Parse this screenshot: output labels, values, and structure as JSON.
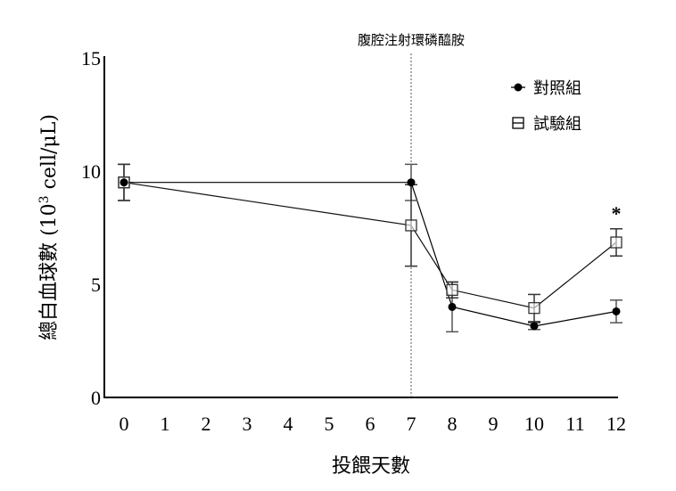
{
  "chart_data": {
    "type": "line",
    "title": "",
    "annotation": "腹腔注射環磷醯胺",
    "annotation_x": 7,
    "xlabel": "投餵天數",
    "ylabel": "總白血球數 (10³ cell/μL)",
    "ylabel_main": "總白血球數 (10",
    "ylabel_sup": "3",
    "ylabel_tail": " cell/μL)",
    "xlim": [
      0,
      12
    ],
    "ylim": [
      0,
      15
    ],
    "x_ticks": [
      0,
      1,
      2,
      3,
      4,
      5,
      6,
      7,
      8,
      9,
      10,
      11,
      12
    ],
    "y_ticks": [
      0,
      5,
      10,
      15
    ],
    "grid": false,
    "legend_position": "upper right",
    "significance_marker": {
      "x": 12,
      "label": "*"
    },
    "series": [
      {
        "name": "對照組",
        "marker": "filled-circle",
        "x": [
          0,
          7,
          8,
          10,
          12
        ],
        "values": [
          9.5,
          9.5,
          4.0,
          3.15,
          3.8
        ],
        "error": [
          0.8,
          0.8,
          1.1,
          0.15,
          0.5
        ]
      },
      {
        "name": "試驗組",
        "marker": "open-square",
        "x": [
          0,
          7,
          8,
          10,
          12
        ],
        "values": [
          9.5,
          7.6,
          4.75,
          3.95,
          6.85
        ],
        "error": [
          0.8,
          1.8,
          0.35,
          0.6,
          0.6
        ]
      }
    ]
  }
}
